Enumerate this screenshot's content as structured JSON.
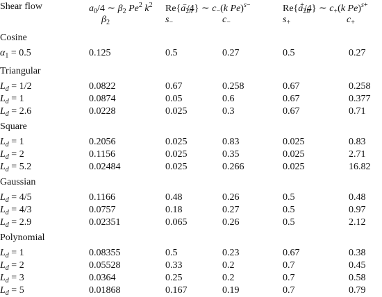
{
  "header": {
    "shear_flow": "Shear flow",
    "col2_top": "a0/4 ∼ β2 Pe² k²",
    "col2_sub": "β2",
    "col3_top": "Re{a⁻2n/4} ∼ c−(k Pe)^s−",
    "col3_sub_a": "s−",
    "col3_sub_b": "c−",
    "col5_top": "Re{a⁺2n/4} ∼ c+(k Pe)^s+",
    "col5_sub_a": "s+",
    "col5_sub_b": "c+"
  },
  "groups": [
    {
      "name": "Cosine",
      "rows": [
        {
          "label": "α1 = 0.5",
          "beta": "0.125",
          "s_minus": "0.5",
          "c_minus": "0.27",
          "s_plus": "0.5",
          "c_plus": "0.27"
        }
      ]
    },
    {
      "name": "Triangular",
      "rows": [
        {
          "label": "Ld = 1/2",
          "beta": "0.0822",
          "s_minus": "0.67",
          "c_minus": "0.258",
          "s_plus": "0.67",
          "c_plus": "0.258"
        },
        {
          "label": "Ld = 1",
          "beta": "0.0874",
          "s_minus": "0.05",
          "c_minus": "0.6",
          "s_plus": "0.67",
          "c_plus": "0.377"
        },
        {
          "label": "Ld = 2.6",
          "beta": "0.0228",
          "s_minus": "0.025",
          "c_minus": "0.3",
          "s_plus": "0.67",
          "c_plus": "0.71"
        }
      ]
    },
    {
      "name": "Square",
      "rows": [
        {
          "label": "Ld = 1",
          "beta": "0.2056",
          "s_minus": "0.025",
          "c_minus": "0.83",
          "s_plus": "0.025",
          "c_plus": "0.83"
        },
        {
          "label": "Ld = 2",
          "beta": "0.1156",
          "s_minus": "0.025",
          "c_minus": "0.35",
          "s_plus": "0.025",
          "c_plus": "2.71"
        },
        {
          "label": "Ld = 5.2",
          "beta": "0.02484",
          "s_minus": "0.025",
          "c_minus": "0.266",
          "s_plus": "0.025",
          "c_plus": "16.82"
        }
      ]
    },
    {
      "name": "Gaussian",
      "rows": [
        {
          "label": "Ld = 4/5",
          "beta": "0.1166",
          "s_minus": "0.48",
          "c_minus": "0.26",
          "s_plus": "0.5",
          "c_plus": "0.48"
        },
        {
          "label": "Ld = 4/3",
          "beta": "0.0757",
          "s_minus": "0.18",
          "c_minus": "0.27",
          "s_plus": "0.5",
          "c_plus": "0.97"
        },
        {
          "label": "Ld = 2.9",
          "beta": "0.02351",
          "s_minus": "0.065",
          "c_minus": "0.26",
          "s_plus": "0.5",
          "c_plus": "2.12"
        }
      ]
    },
    {
      "name": "Polynomial",
      "rows": [
        {
          "label": "Ld = 1",
          "beta": "0.08355",
          "s_minus": "0.5",
          "c_minus": "0.23",
          "s_plus": "0.67",
          "c_plus": "0.38"
        },
        {
          "label": "Ld = 2",
          "beta": "0.05528",
          "s_minus": "0.33",
          "c_minus": "0.2",
          "s_plus": "0.7",
          "c_plus": "0.45"
        },
        {
          "label": "Ld = 3",
          "beta": "0.0364",
          "s_minus": "0.25",
          "c_minus": "0.2",
          "s_plus": "0.7",
          "c_plus": "0.58"
        },
        {
          "label": "Ld = 5",
          "beta": "0.01868",
          "s_minus": "0.167",
          "c_minus": "0.19",
          "s_plus": "0.7",
          "c_plus": "0.79"
        }
      ]
    }
  ]
}
